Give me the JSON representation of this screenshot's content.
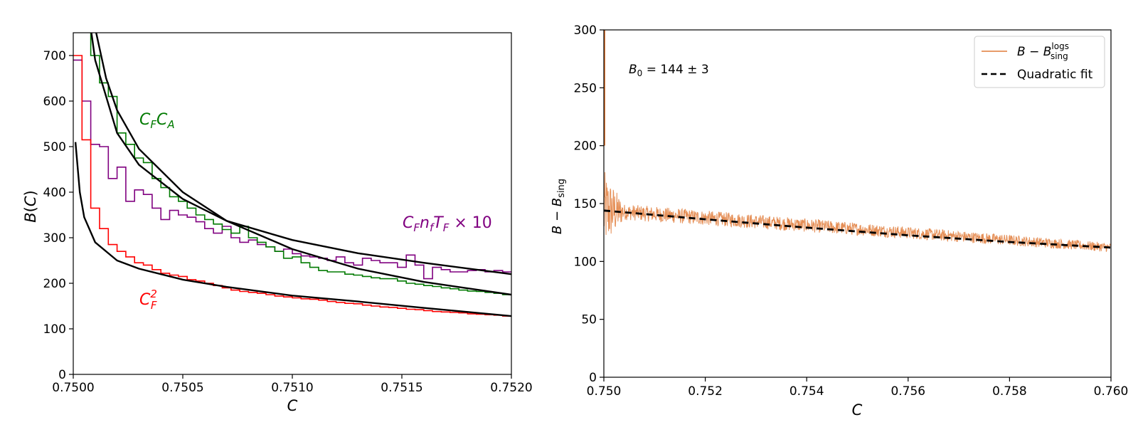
{
  "chart_data": [
    {
      "type": "line",
      "xlabel": "C",
      "ylabel": "B(C)",
      "xlim": [
        0.75,
        0.752
      ],
      "ylim": [
        0,
        750
      ],
      "xticks": [
        "0.7500",
        "0.7505",
        "0.7510",
        "0.7515",
        "0.7520"
      ],
      "yticks": [
        "0",
        "100",
        "200",
        "300",
        "400",
        "500",
        "600",
        "700"
      ],
      "grid": false,
      "legend": "none",
      "histogram_bin_width": 4e-05,
      "series": [
        {
          "name": "C_F n_f T_F × 10",
          "color": "#800080",
          "label_parts": [
            "C",
            "F",
            "n",
            "f",
            "T",
            "F",
            " × 10"
          ],
          "histogram": [
            690,
            600,
            505,
            500,
            430,
            455,
            380,
            405,
            395,
            365,
            340,
            360,
            350,
            345,
            335,
            320,
            310,
            325,
            300,
            290,
            295,
            285,
            280,
            270,
            275,
            265,
            260,
            258,
            255,
            250,
            258,
            245,
            240,
            255,
            250,
            245,
            245,
            235,
            262,
            240,
            210,
            235,
            230,
            225,
            225,
            228,
            230,
            225,
            228,
            225
          ],
          "fit": [
            [
              0.75,
              1100
            ],
            [
              0.75004,
              900
            ],
            [
              0.7501,
              690
            ],
            [
              0.7502,
              530
            ],
            [
              0.7503,
              460
            ],
            [
              0.7505,
              385
            ],
            [
              0.7507,
              337
            ],
            [
              0.751,
              295
            ],
            [
              0.7513,
              266
            ],
            [
              0.7516,
              245
            ],
            [
              0.752,
              220
            ]
          ]
        },
        {
          "name": "C_F C_A",
          "color": "#007a00",
          "label_parts": [
            "C",
            "F",
            "C",
            "A"
          ],
          "histogram": [
            900,
            810,
            700,
            640,
            610,
            530,
            505,
            475,
            465,
            430,
            410,
            390,
            380,
            365,
            350,
            340,
            330,
            318,
            310,
            325,
            300,
            290,
            280,
            270,
            255,
            258,
            245,
            235,
            228,
            225,
            225,
            220,
            218,
            215,
            212,
            210,
            210,
            205,
            200,
            198,
            195,
            193,
            190,
            188,
            185,
            183,
            182,
            180,
            178,
            175
          ],
          "fit": [
            [
              0.75007,
              860
            ],
            [
              0.7501,
              760
            ],
            [
              0.75015,
              650
            ],
            [
              0.7502,
              580
            ],
            [
              0.7503,
              495
            ],
            [
              0.7505,
              400
            ],
            [
              0.7507,
              337
            ],
            [
              0.751,
              275
            ],
            [
              0.7513,
              232
            ],
            [
              0.7516,
              203
            ],
            [
              0.752,
              175
            ]
          ]
        },
        {
          "name": "C_F^2",
          "color": "#ff0000",
          "label_parts": [
            "C",
            "F",
            "2"
          ],
          "histogram": [
            700,
            515,
            365,
            320,
            285,
            270,
            258,
            245,
            240,
            230,
            222,
            218,
            215,
            208,
            205,
            200,
            195,
            190,
            185,
            182,
            180,
            178,
            175,
            172,
            170,
            168,
            166,
            165,
            163,
            160,
            158,
            156,
            155,
            152,
            150,
            148,
            147,
            145,
            143,
            142,
            140,
            138,
            137,
            136,
            135,
            133,
            132,
            131,
            130,
            128
          ],
          "fit": [
            [
              0.75001,
              510
            ],
            [
              0.75003,
              400
            ],
            [
              0.75005,
              345
            ],
            [
              0.7501,
              290
            ],
            [
              0.7502,
              250
            ],
            [
              0.7503,
              232
            ],
            [
              0.7505,
              208
            ],
            [
              0.7507,
              192
            ],
            [
              0.751,
              173
            ],
            [
              0.7513,
              160
            ],
            [
              0.7516,
              146
            ],
            [
              0.752,
              128
            ]
          ]
        }
      ]
    },
    {
      "type": "line",
      "xlabel": "C",
      "ylabel": "B − B_sing",
      "xlim": [
        0.75,
        0.76
      ],
      "ylim": [
        0,
        300
      ],
      "xticks": [
        "0.750",
        "0.752",
        "0.754",
        "0.756",
        "0.758",
        "0.760"
      ],
      "yticks": [
        "0",
        "50",
        "100",
        "150",
        "200",
        "250",
        "300"
      ],
      "grid": false,
      "legend": "top-right",
      "annotation": {
        "parts": [
          "B",
          "0",
          " = 144 ± 3"
        ]
      },
      "series": [
        {
          "name_parts": [
            "B",
            " − ",
            "B",
            "logs",
            "sing"
          ],
          "color": "#e07b39",
          "style": "noisy-line",
          "trend": [
            [
              0.75,
              144
            ],
            [
              0.76,
              112
            ]
          ],
          "spike": [
            [
              0.75,
              300
            ],
            [
              0.75,
              200
            ]
          ]
        },
        {
          "name": "Quadratic fit",
          "color": "#000000",
          "style": "dashed",
          "x": [
            0.75,
            0.752,
            0.754,
            0.756,
            0.758,
            0.76
          ],
          "y": [
            144,
            136.4,
            129.2,
            122.6,
            116.8,
            112
          ]
        }
      ]
    }
  ]
}
